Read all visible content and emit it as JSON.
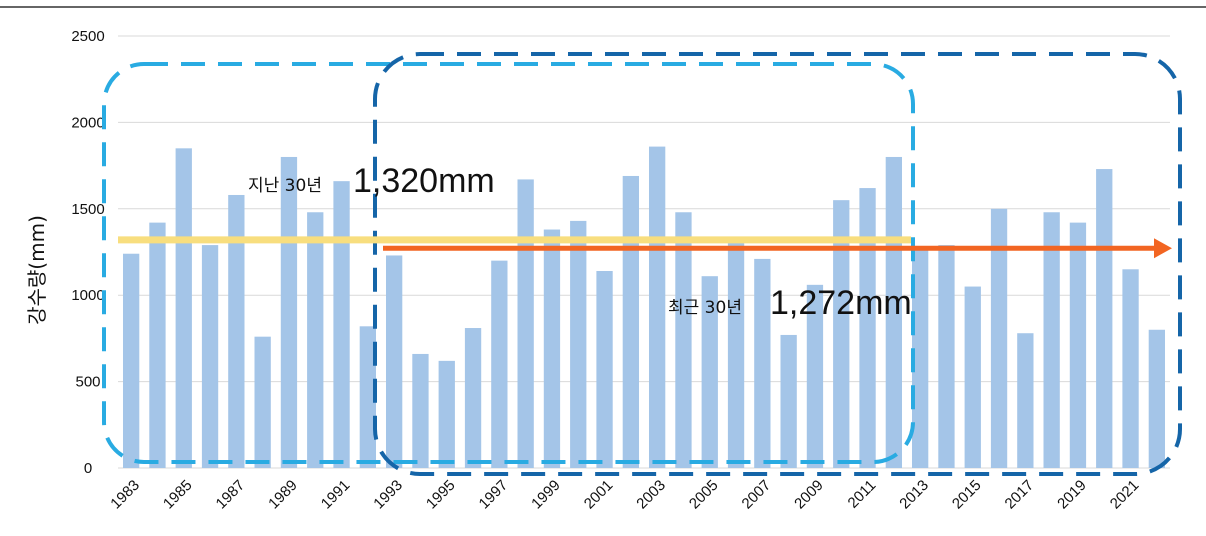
{
  "chart_data": {
    "type": "bar",
    "ylabel": "강수량(mm)",
    "ylim": [
      0,
      2500
    ],
    "yticks": [
      0,
      500,
      1000,
      1500,
      2000,
      2500
    ],
    "grid": true,
    "categories": [
      1983,
      1984,
      1985,
      1986,
      1987,
      1988,
      1989,
      1990,
      1991,
      1992,
      1993,
      1994,
      1995,
      1996,
      1997,
      1998,
      1999,
      2000,
      2001,
      2002,
      2003,
      2004,
      2005,
      2006,
      2007,
      2008,
      2009,
      2010,
      2011,
      2012,
      2013,
      2014,
      2015,
      2016,
      2017,
      2018,
      2019,
      2020,
      2021,
      2022
    ],
    "xtick_labels": [
      "1983",
      "1985",
      "1987",
      "1989",
      "1991",
      "1993",
      "1995",
      "1997",
      "1999",
      "2001",
      "2003",
      "2005",
      "2007",
      "2009",
      "2011",
      "2013",
      "2015",
      "2017",
      "2019",
      "2021"
    ],
    "values": [
      1240,
      1420,
      1850,
      1290,
      1580,
      760,
      1800,
      1480,
      1660,
      820,
      1230,
      660,
      620,
      810,
      1200,
      1670,
      1380,
      1430,
      1140,
      1690,
      1860,
      1480,
      1110,
      1310,
      1210,
      770,
      1060,
      1550,
      1620,
      1800,
      1270,
      1290,
      1050,
      1500,
      780,
      1480,
      1420,
      1730,
      1150,
      800
    ],
    "bar_color": "#a4c5e8",
    "annotations": [
      {
        "id": "past",
        "label_small": "지난 30년",
        "label_big": "1,320mm",
        "value": 1320,
        "x_start": 1983,
        "x_end": 2012,
        "color": "#f8de7e"
      },
      {
        "id": "recent",
        "label_small": "최근 30년",
        "label_big": "1,272mm",
        "value": 1272,
        "x_start": 1993,
        "x_end": 2022,
        "color": "#f26522"
      }
    ],
    "periods": [
      {
        "id": "past",
        "x_start": 1983,
        "x_end": 2012,
        "color": "#29abe2"
      },
      {
        "id": "recent",
        "x_start": 1993,
        "x_end": 2022,
        "color": "#1565a8"
      }
    ]
  }
}
